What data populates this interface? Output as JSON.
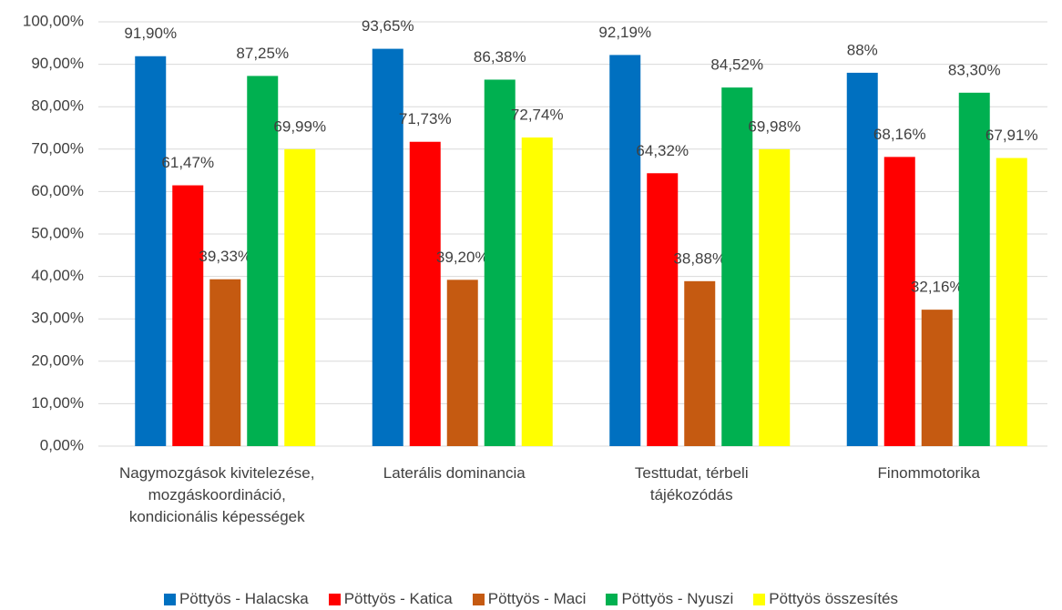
{
  "chart_data": {
    "type": "bar",
    "categories": [
      "Nagymozgások kivitelezése, mozgáskoordináció, kondicionális képességek",
      "Laterális dominancia",
      "Testtudat, térbeli tájékozódás",
      "Finommotorika"
    ],
    "series": [
      {
        "name": "Pöttyös - Halacska",
        "color": "#0070c0",
        "values": [
          91.9,
          93.65,
          92.19,
          88
        ],
        "value_labels": [
          "91,90%",
          "93,65%",
          "92,19%",
          "88%"
        ]
      },
      {
        "name": "Pöttyös - Katica",
        "color": "#ff0000",
        "values": [
          61.47,
          71.73,
          64.32,
          68.16
        ],
        "value_labels": [
          "61,47%",
          "71,73%",
          "64,32%",
          "68,16%"
        ]
      },
      {
        "name": "Pöttyös - Maci",
        "color": "#c55a11",
        "values": [
          39.33,
          39.2,
          38.88,
          32.16
        ],
        "value_labels": [
          "39,33%",
          "39,20%",
          "38,88%",
          "32,16%"
        ]
      },
      {
        "name": "Pöttyös - Nyuszi",
        "color": "#00b050",
        "values": [
          87.25,
          86.38,
          84.52,
          83.3
        ],
        "value_labels": [
          "87,25%",
          "86,38%",
          "84,52%",
          "83,30%"
        ]
      },
      {
        "name": "Pöttyös összesítés",
        "color": "#ffff00",
        "values": [
          69.99,
          72.74,
          69.98,
          67.91
        ],
        "value_labels": [
          "69,99%",
          "72,74%",
          "69,98%",
          "67,91%"
        ]
      }
    ],
    "ylim": [
      0,
      100
    ],
    "yticks": [
      {
        "value": 0,
        "label": "0,00%"
      },
      {
        "value": 10,
        "label": "10,00%"
      },
      {
        "value": 20,
        "label": "20,00%"
      },
      {
        "value": 30,
        "label": "30,00%"
      },
      {
        "value": 40,
        "label": "40,00%"
      },
      {
        "value": 50,
        "label": "50,00%"
      },
      {
        "value": 60,
        "label": "60,00%"
      },
      {
        "value": 70,
        "label": "70,00%"
      },
      {
        "value": 80,
        "label": "80,00%"
      },
      {
        "value": 90,
        "label": "90,00%"
      },
      {
        "value": 100,
        "label": "100,00%"
      }
    ],
    "grid": true,
    "legend": "bottom"
  }
}
